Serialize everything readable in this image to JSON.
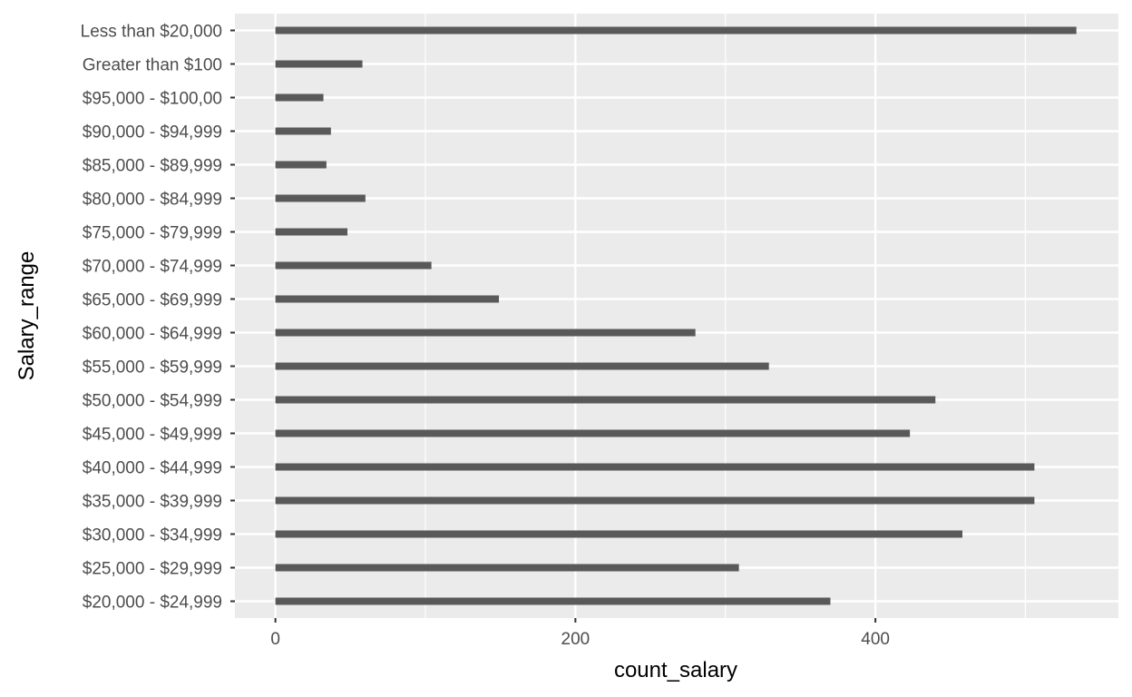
{
  "chart_data": {
    "type": "bar",
    "orientation": "horizontal",
    "xlabel": "count_salary",
    "ylabel": "Salary_range",
    "xlim": [
      -27,
      562
    ],
    "xticks": [
      0,
      200,
      400
    ],
    "minor_xticks": [
      100,
      300,
      500
    ],
    "grid": true,
    "legend": "none",
    "categories": [
      "$20,000 - $24,999",
      "$25,000 - $29,999",
      "$30,000 - $34,999",
      "$35,000 - $39,999",
      "$40,000 - $44,999",
      "$45,000 - $49,999",
      "$50,000 - $54,999",
      "$55,000 - $59,999",
      "$60,000 - $64,999",
      "$65,000 - $69,999",
      "$70,000 - $74,999",
      "$75,000 - $79,999",
      "$80,000 - $84,999",
      "$85,000 - $89,999",
      "$90,000 - $94,999",
      "$95,000 - $100,00",
      "Greater than $100",
      "Less than $20,000"
    ],
    "values": [
      370,
      309,
      458,
      506,
      506,
      423,
      440,
      329,
      280,
      149,
      104,
      48,
      60,
      34,
      37,
      32,
      58,
      534
    ],
    "colors": {
      "panel": "#ebebeb",
      "grid": "#ffffff",
      "bar": "#595959",
      "tick_label": "#4d4d4d",
      "tick_mark": "#333333"
    }
  }
}
